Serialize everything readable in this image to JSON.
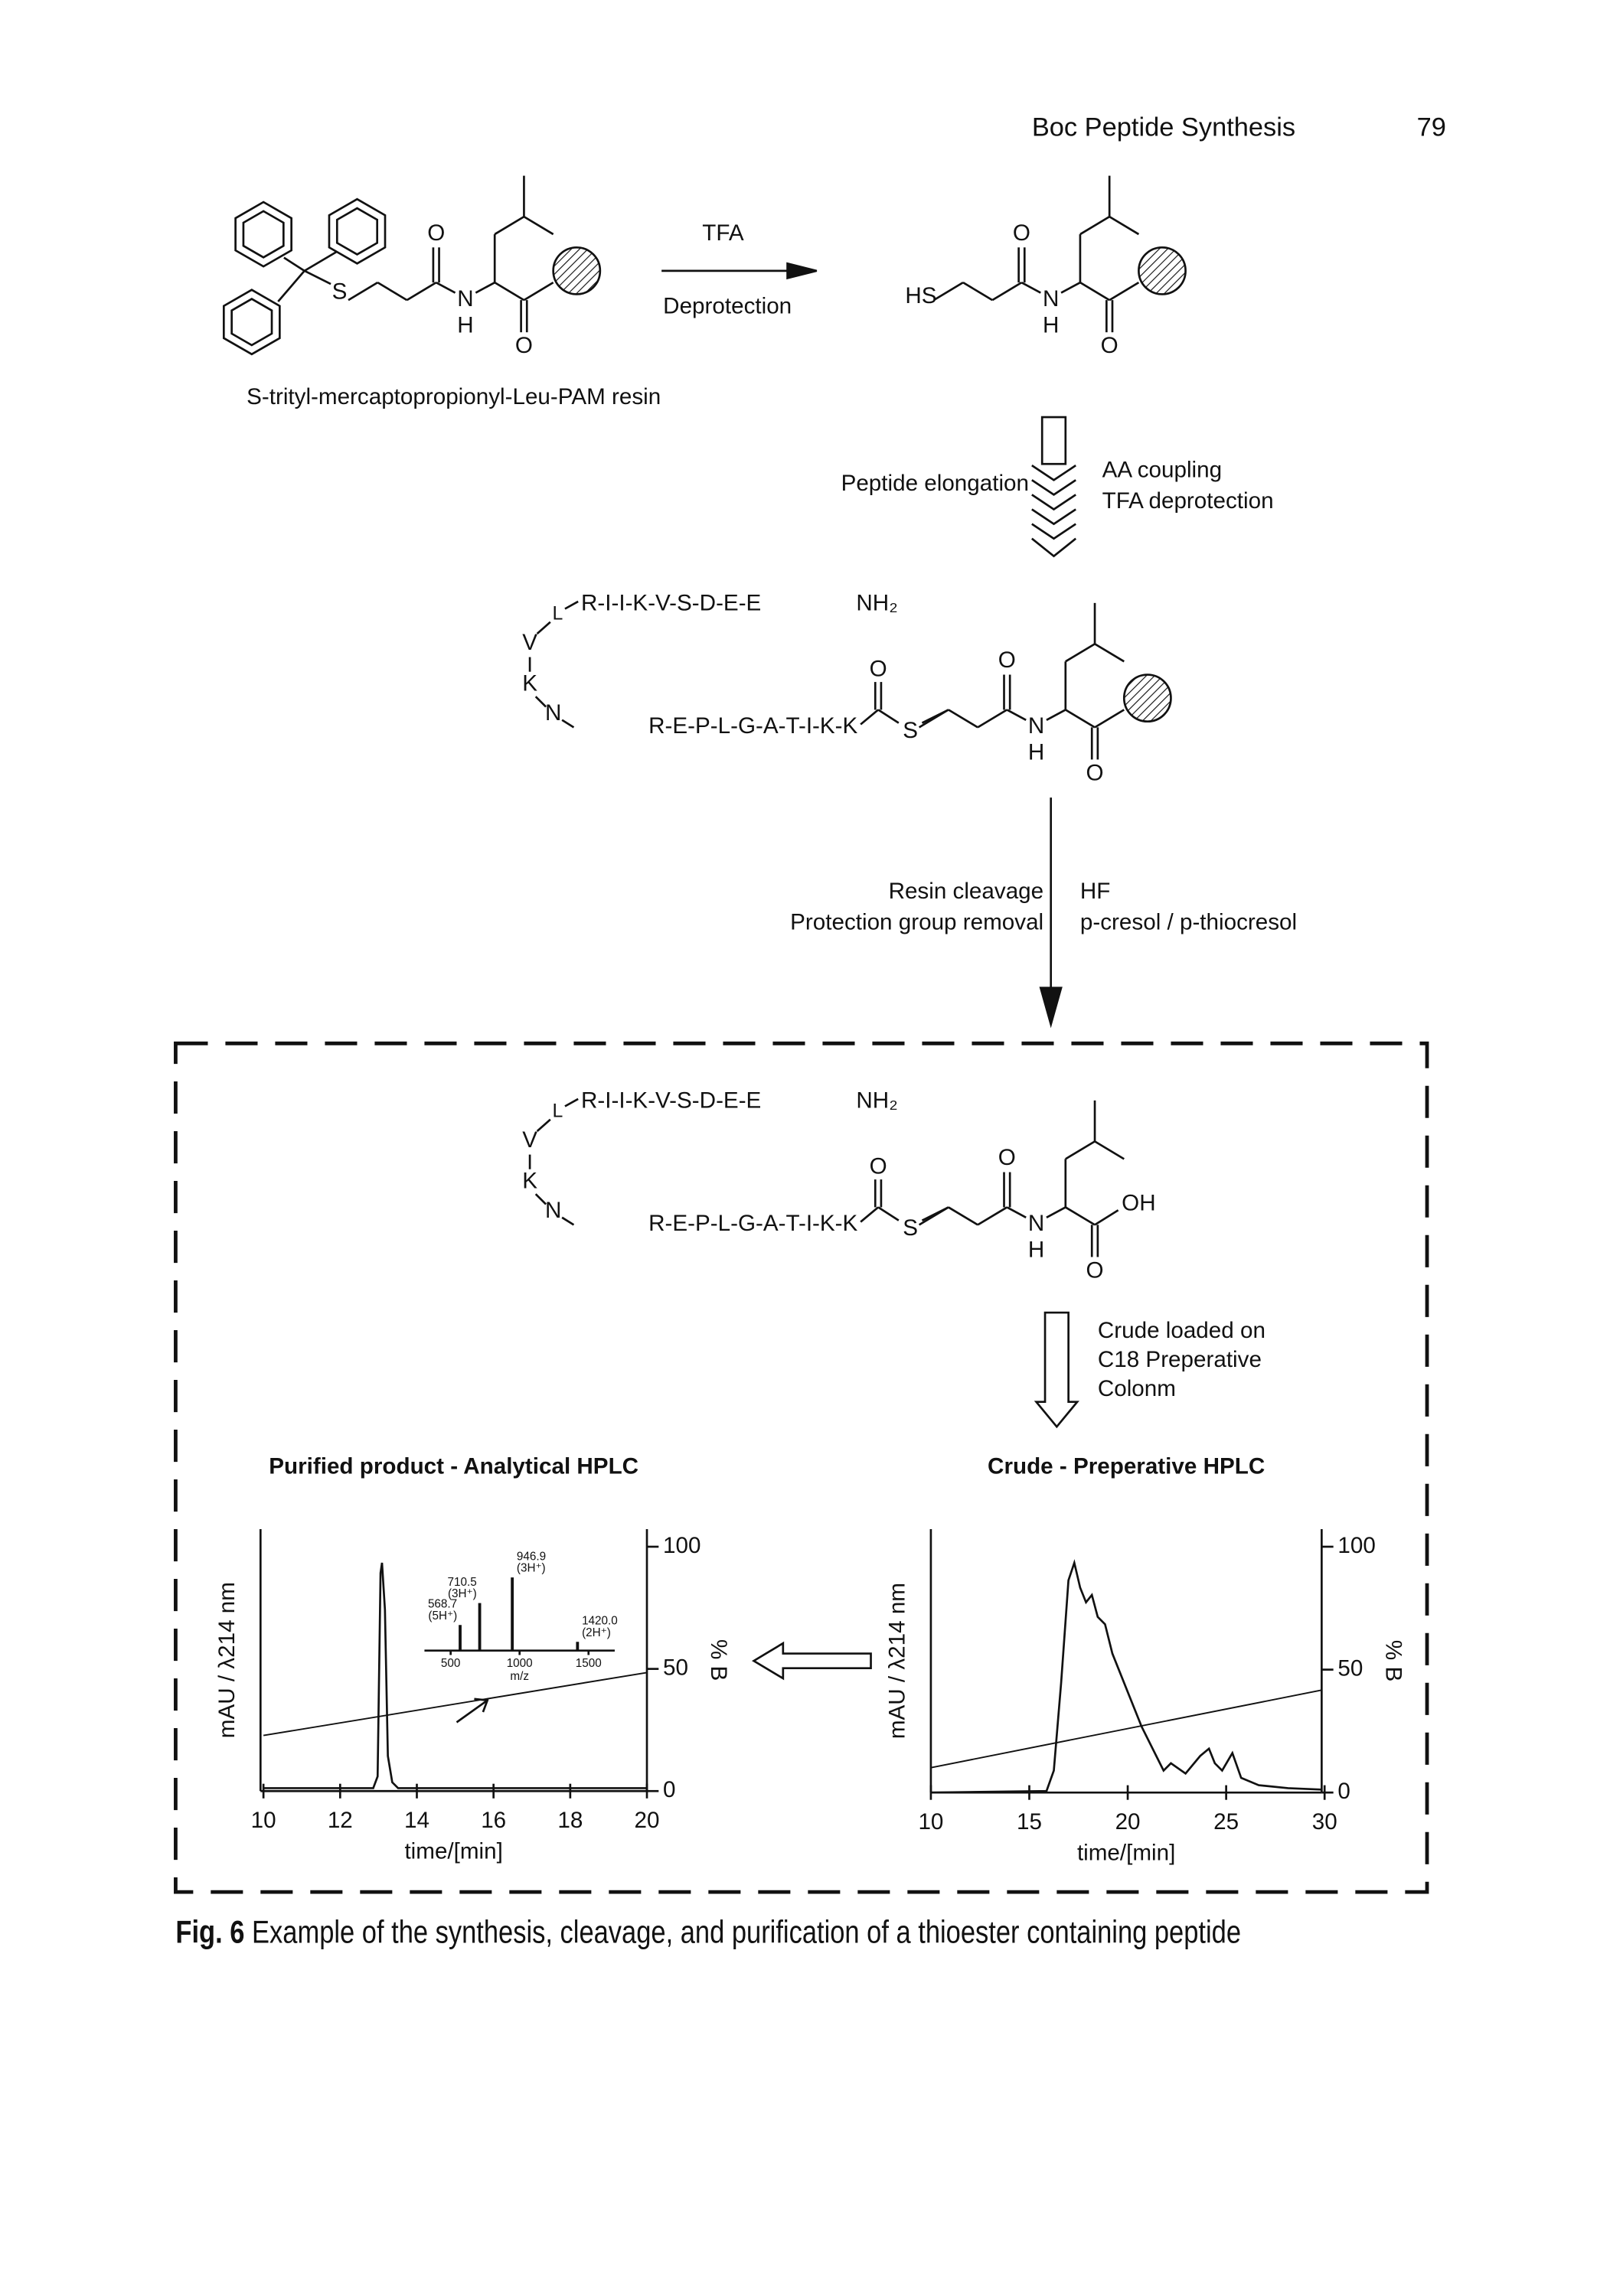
{
  "header": {
    "running_title": "Boc Peptide Synthesis",
    "page_number": "79"
  },
  "scheme": {
    "step1": {
      "reagent": "TFA",
      "condition": "Deprotection",
      "start_label": "S-trityl-mercaptopropionyl-Leu-PAM resin",
      "start_atoms": [
        "S",
        "O",
        "N",
        "H",
        "O"
      ],
      "product_atoms": [
        "HS",
        "O",
        "N",
        "H",
        "O"
      ]
    },
    "step2": {
      "label": "Peptide elongation",
      "conditions": [
        "AA coupling",
        "TFA deprotection"
      ],
      "product": {
        "upper_sequence": "R-I-I-K-V-S-D-E-E",
        "terminus": "NH₂",
        "branch": [
          "L",
          "V",
          "K",
          "N"
        ],
        "lower_sequence": "R-E-P-L-G-A-T-I-K-K",
        "atoms": [
          "O",
          "S",
          "O",
          "N",
          "H",
          "O"
        ]
      }
    },
    "step3": {
      "labels": [
        "Resin cleavage",
        "Protection group removal"
      ],
      "conditions": [
        "HF",
        "p-cresol / p-thiocresol"
      ],
      "product": {
        "upper_sequence": "R-I-I-K-V-S-D-E-E",
        "terminus": "NH₂",
        "branch": [
          "L",
          "V",
          "K",
          "N"
        ],
        "lower_sequence": "R-E-P-L-G-A-T-I-K-K",
        "atoms": [
          "O",
          "S",
          "O",
          "N",
          "H",
          "OH",
          "O"
        ]
      }
    },
    "step4": {
      "conditions": [
        "Crude loaded on",
        "C18 Preperative",
        "Colonm"
      ]
    }
  },
  "charts": [
    {
      "title": "Purified product - Analytical HPLC",
      "y_label": "mAU / λ214 nm",
      "y2_label": "% B",
      "x_label": "time/[min]",
      "xlim": [
        10,
        20
      ],
      "xticks": [
        10,
        12,
        14,
        16,
        18,
        20
      ],
      "y2lim": [
        0,
        100
      ],
      "y2ticks": [
        0,
        50,
        100
      ],
      "inset": {
        "x_label": "m/z",
        "xlim": [
          310,
          1690
        ],
        "xticks": [
          500,
          1000,
          1500
        ],
        "peaks": {
          "values": [
            568.7,
            710.5,
            946.9,
            1420
          ],
          "value_labels": [
            "568.7",
            "710.5",
            "946.9",
            "1420.0"
          ],
          "charges": [
            "(5H⁺)",
            "(3H⁺)",
            "(3H⁺)",
            "(2H⁺)"
          ],
          "intensities": [
            35,
            65,
            100,
            12
          ]
        }
      }
    },
    {
      "title": "Crude - Preperative HPLC",
      "y_label": "mAU / λ214 nm",
      "y2_label": "% B",
      "x_label": "time/[min]",
      "xlim": [
        10,
        30
      ],
      "xticks": [
        10,
        15,
        20,
        25,
        30
      ],
      "y2lim": [
        0,
        100
      ],
      "y2ticks": [
        0,
        50,
        100
      ]
    }
  ],
  "caption": {
    "label": "Fig. 6",
    "text": "Example of the synthesis, cleavage, and purification of a thioester containing peptide"
  }
}
